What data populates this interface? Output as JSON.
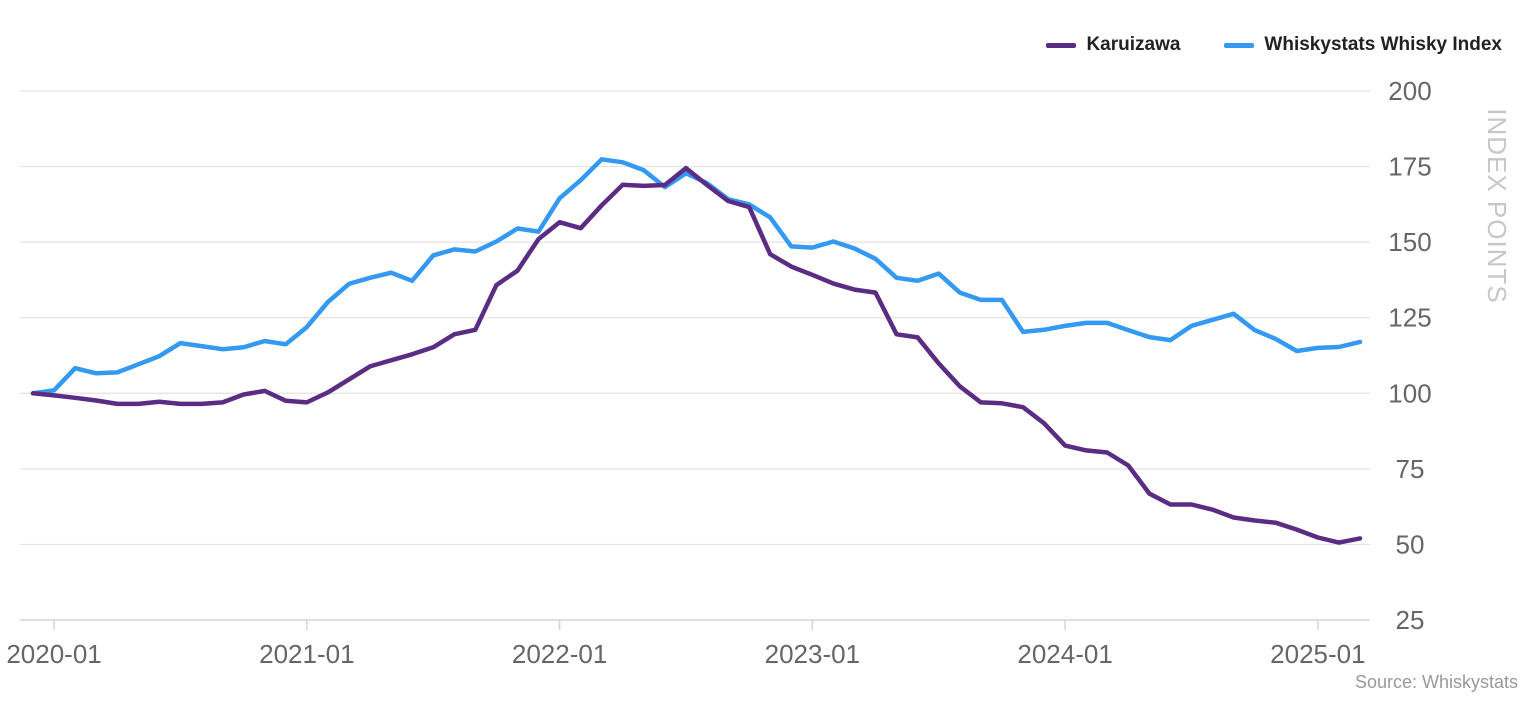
{
  "chart_data": {
    "type": "line",
    "ylabel": "INDEX POINTS",
    "ylim": [
      25,
      200
    ],
    "yticks": [
      "200",
      "175",
      "150",
      "125",
      "100",
      "75",
      "50",
      "25"
    ],
    "xticks": [
      "2020-01",
      "2021-01",
      "2022-01",
      "2023-01",
      "2024-01",
      "2025-01"
    ],
    "x_start": "2019-12",
    "x_end": "2025-03",
    "grid": "horizontal",
    "legend_position": "top-right",
    "series": [
      {
        "name": "Karuizawa",
        "color": "#5b2c83",
        "values": [
          100.0,
          99.3,
          98.5,
          97.6,
          96.5,
          96.5,
          97.2,
          96.5,
          96.5,
          97.0,
          99.6,
          100.8,
          97.5,
          97.0,
          100.3,
          104.6,
          108.9,
          110.9,
          112.9,
          115.2,
          119.5,
          121.0,
          135.8,
          140.6,
          151.0,
          156.6,
          154.6,
          162.2,
          169.0,
          168.6,
          168.9,
          174.5,
          168.9,
          163.6,
          161.6,
          146.0,
          141.9,
          139.2,
          136.3,
          134.3,
          133.3,
          119.5,
          118.5,
          109.9,
          102.3,
          97.0,
          96.7,
          95.4,
          90.1,
          82.7,
          81.1,
          80.4,
          76.1,
          66.8,
          63.2,
          63.2,
          61.5,
          58.9,
          57.9,
          57.2,
          54.9,
          52.3,
          50.6,
          52.0
        ],
        "labels": [
          "2019-12",
          "2020-01",
          "2020-02",
          "2020-03",
          "2020-04",
          "2020-05",
          "2020-06",
          "2020-07",
          "2020-08",
          "2020-09",
          "2020-10",
          "2020-11",
          "2020-12",
          "2021-01",
          "2021-02",
          "2021-03",
          "2021-04",
          "2021-05",
          "2021-06",
          "2021-07",
          "2021-08",
          "2021-09",
          "2021-10",
          "2021-11",
          "2021-12",
          "2022-01",
          "2022-02",
          "2022-03",
          "2022-04",
          "2022-05",
          "2022-06",
          "2022-07",
          "2022-08",
          "2022-09",
          "2022-10",
          "2022-11",
          "2022-12",
          "2023-01",
          "2023-02",
          "2023-03",
          "2023-04",
          "2023-05",
          "2023-06",
          "2023-07",
          "2023-08",
          "2023-09",
          "2023-10",
          "2023-11",
          "2023-12",
          "2024-01",
          "2024-02",
          "2024-03",
          "2024-04",
          "2024-05",
          "2024-06",
          "2024-07",
          "2024-08",
          "2024-09",
          "2024-10",
          "2024-11",
          "2024-12",
          "2025-01",
          "2025-02",
          "2025-03"
        ]
      },
      {
        "name": "Whiskystats Whisky Index",
        "color": "#3399f3",
        "values": [
          100.0,
          101.0,
          108.3,
          106.6,
          106.9,
          109.6,
          112.3,
          116.6,
          115.6,
          114.6,
          115.2,
          117.3,
          116.2,
          121.9,
          130.2,
          136.2,
          138.2,
          139.9,
          137.2,
          145.6,
          147.6,
          146.9,
          150.2,
          154.5,
          153.5,
          164.5,
          170.5,
          177.4,
          176.4,
          173.8,
          168.2,
          172.8,
          169.5,
          164.2,
          162.5,
          158.2,
          148.6,
          148.2,
          150.2,
          147.9,
          144.5,
          138.2,
          137.2,
          139.6,
          133.3,
          130.9,
          130.9,
          120.3,
          121.0,
          122.3,
          123.3,
          123.3,
          120.9,
          118.6,
          117.6,
          122.3,
          124.3,
          126.3,
          120.9,
          118.0,
          114.0,
          115.0,
          115.3,
          117.0
        ],
        "labels": [
          "2019-12",
          "2020-01",
          "2020-02",
          "2020-03",
          "2020-04",
          "2020-05",
          "2020-06",
          "2020-07",
          "2020-08",
          "2020-09",
          "2020-10",
          "2020-11",
          "2020-12",
          "2021-01",
          "2021-02",
          "2021-03",
          "2021-04",
          "2021-05",
          "2021-06",
          "2021-07",
          "2021-08",
          "2021-09",
          "2021-10",
          "2021-11",
          "2021-12",
          "2022-01",
          "2022-02",
          "2022-03",
          "2022-04",
          "2022-05",
          "2022-06",
          "2022-07",
          "2022-08",
          "2022-09",
          "2022-10",
          "2022-11",
          "2022-12",
          "2023-01",
          "2023-02",
          "2023-03",
          "2023-04",
          "2023-05",
          "2023-06",
          "2023-07",
          "2023-08",
          "2023-09",
          "2023-10",
          "2023-11",
          "2023-12",
          "2024-01",
          "2024-02",
          "2024-03",
          "2024-04",
          "2024-05",
          "2024-06",
          "2024-07",
          "2024-08",
          "2024-09",
          "2024-10",
          "2024-11",
          "2024-12",
          "2025-01",
          "2025-02",
          "2025-03"
        ]
      }
    ]
  },
  "source": "Source: Whiskystats"
}
